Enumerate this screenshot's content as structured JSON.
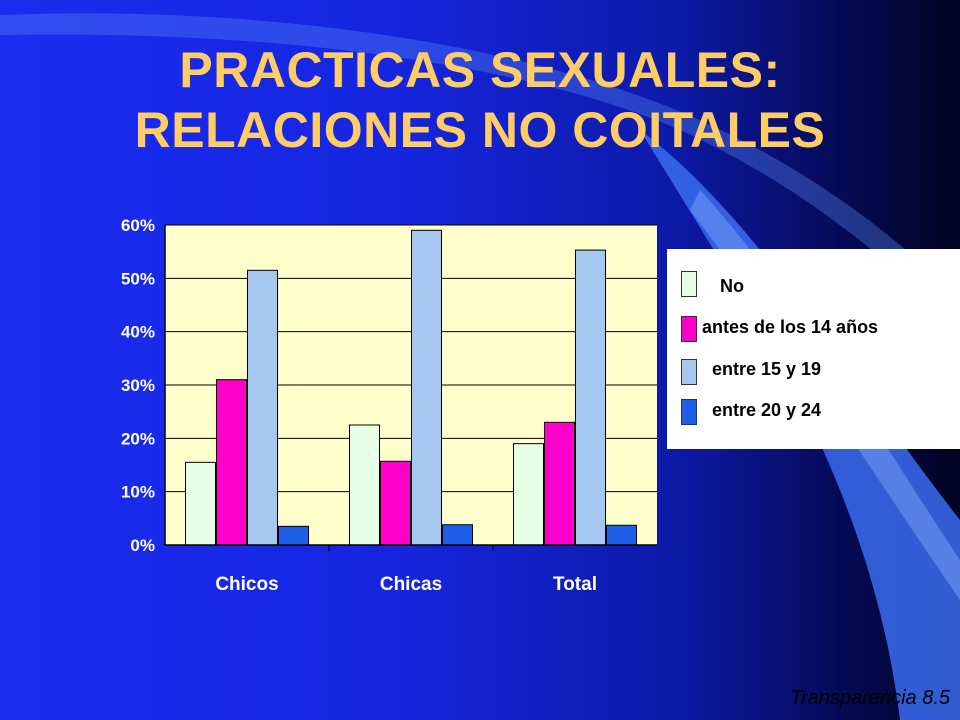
{
  "title": {
    "line1": "PRACTICAS SEXUALES:",
    "line2": "RELACIONES NO COITALES"
  },
  "footer": "Transparencia 8.5",
  "colors": {
    "title": "#ffcc66",
    "plot_bg": "#ffffcc",
    "grid": "#000000"
  },
  "chart_data": {
    "type": "bar",
    "title": "",
    "xlabel": "",
    "ylabel": "",
    "categories": [
      "Chicos",
      "Chicas",
      "Total"
    ],
    "ylim": [
      0,
      0.6
    ],
    "yticks": [
      "0%",
      "10%",
      "20%",
      "30%",
      "40%",
      "50%",
      "60%"
    ],
    "grid": true,
    "legend_position": "right",
    "series": [
      {
        "name": "No",
        "color": "#e6ffe6",
        "values": [
          0.155,
          0.225,
          0.19
        ]
      },
      {
        "name": "antes de los 14 años",
        "color": "#ff00cc",
        "values": [
          0.31,
          0.157,
          0.23
        ]
      },
      {
        "name": "entre 15 y 19",
        "color": "#a6c8f0",
        "values": [
          0.515,
          0.59,
          0.553
        ]
      },
      {
        "name": "entre 20 y 24",
        "color": "#1f5fe8",
        "values": [
          0.035,
          0.038,
          0.037
        ]
      }
    ]
  }
}
